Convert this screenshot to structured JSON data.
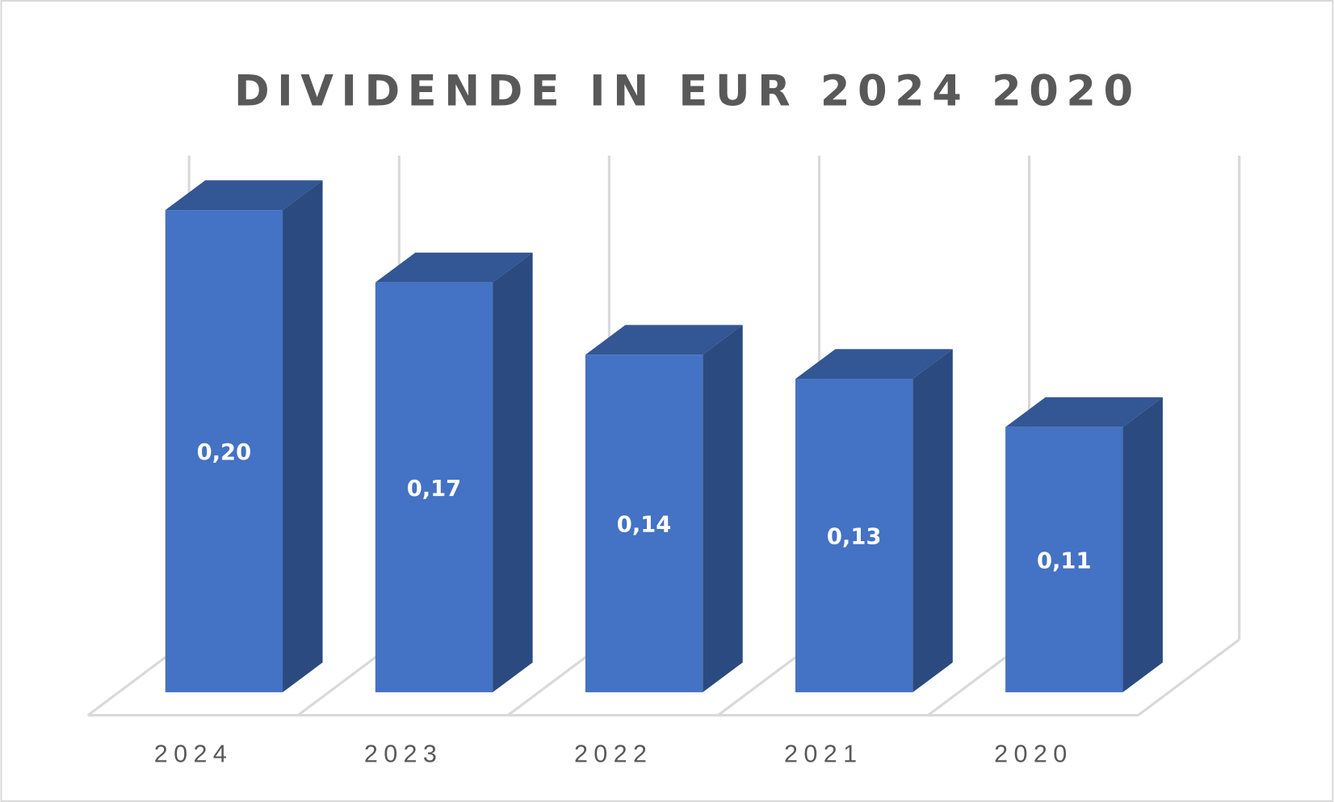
{
  "chart_data": {
    "type": "bar",
    "style": "3d-column",
    "title": "DIVIDENDE IN EUR 2024 2020",
    "categories": [
      "2024",
      "2023",
      "2022",
      "2021",
      "2020"
    ],
    "values": [
      0.2,
      0.17,
      0.14,
      0.13,
      0.11
    ],
    "data_labels": [
      "0,20",
      "0,17",
      "0,14",
      "0,13",
      "0,11"
    ],
    "xlabel": "",
    "ylabel": "",
    "ylim": [
      0,
      0.2
    ],
    "grid": true,
    "legend": "none",
    "colors": {
      "front": "#4472c4",
      "top": "#335695",
      "side": "#2b4a80",
      "grid": "#d9d9d9",
      "text": "#595959"
    }
  }
}
